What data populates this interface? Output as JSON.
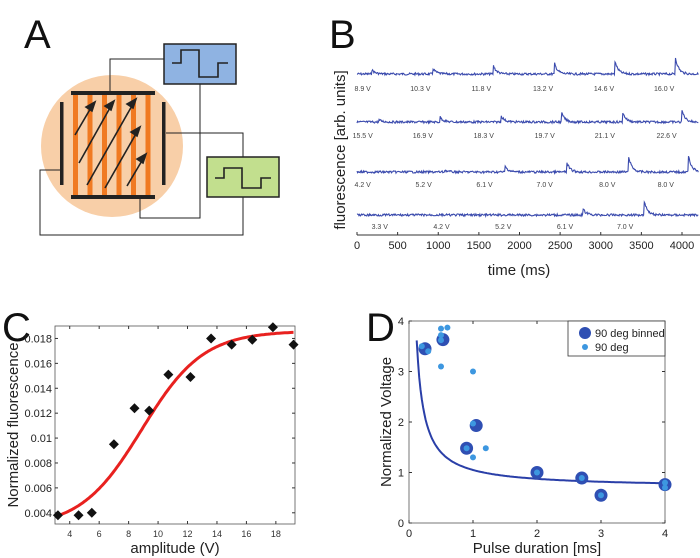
{
  "panels": {
    "A": {
      "letter": "A"
    },
    "B": {
      "letter": "B"
    },
    "C": {
      "letter": "C"
    },
    "D": {
      "letter": "D"
    }
  },
  "colors": {
    "trace": "#3a4aad",
    "fit_red": "#e8211f",
    "binned": "#2f4fb3",
    "raw": "#3d97e0",
    "fit_blue": "#2a3fa8",
    "circle_fill": "#f8cfa8",
    "stripe": "#f07a22",
    "blue_box": "#8fb3e2",
    "green_box": "#c2df8e"
  },
  "chart_data": [
    {
      "panel": "A",
      "type": "diagram",
      "description": "Electrode schematic with two square-wave pulse generators driving field across striped sample"
    },
    {
      "panel": "B",
      "type": "line",
      "title": "",
      "xlabel": "time (ms)",
      "ylabel": "fluorescence [arb. units]",
      "xlim": [
        0,
        4200
      ],
      "xticks": [
        0,
        500,
        1000,
        1500,
        2000,
        2500,
        3000,
        3500,
        4000
      ],
      "traces": [
        {
          "name": "trace-1",
          "labels": [
            "8.9 V",
            "10.3 V",
            "11.8 V",
            "13.2 V",
            "14.6 V",
            "16.0 V"
          ],
          "spike_times": [
            180,
            930,
            1680,
            2430,
            3170,
            3920
          ],
          "spike_heights": [
            0.25,
            0.35,
            0.45,
            0.6,
            0.8,
            0.9
          ]
        },
        {
          "name": "trace-2",
          "labels": [
            "15.5 V",
            "16.9 V",
            "18.3 V",
            "19.7 V",
            "21.1 V",
            "22.6 V"
          ],
          "spike_times": [
            270,
            1020,
            1770,
            2520,
            3270,
            4000
          ],
          "spike_heights": [
            0.12,
            0.3,
            0.4,
            0.5,
            0.55,
            0.65
          ]
        },
        {
          "name": "trace-3",
          "labels": [
            "4.2 V",
            "5.2 V",
            "6.1 V",
            "7.0 V",
            "8.0 V",
            "8.0 V"
          ],
          "spike_times": [
            330,
            1080,
            1820,
            2580,
            3340,
            4080
          ],
          "spike_heights": [
            0.0,
            0.1,
            0.35,
            0.55,
            0.95,
            0.9
          ]
        },
        {
          "name": "trace-4",
          "labels": [
            "3.3 V",
            "4.2 V",
            "5.2 V",
            "6.1 V",
            "7.0 V"
          ],
          "spike_times": [
            300,
            1050,
            1800,
            2780,
            3530
          ],
          "spike_heights": [
            0.0,
            0.0,
            0.0,
            0.35,
            0.9
          ]
        }
      ],
      "label_times": [
        [
          70,
          780,
          1530,
          2290,
          3040,
          3780
        ],
        [
          70,
          810,
          1560,
          2310,
          3050,
          3810
        ],
        [
          70,
          820,
          1570,
          2310,
          3080,
          3800
        ],
        [
          280,
          1040,
          1800,
          2560,
          3300
        ]
      ]
    },
    {
      "panel": "C",
      "type": "scatter",
      "title": "",
      "xlabel": "amplitude (V)",
      "ylabel": "Normalized fluorescence",
      "xlim": [
        3,
        19.3
      ],
      "ylim": [
        0.0031,
        0.019
      ],
      "xticks": [
        4,
        6,
        8,
        10,
        12,
        14,
        16,
        18
      ],
      "yticks": [
        0.004,
        0.006,
        0.008,
        0.01,
        0.012,
        0.014,
        0.016,
        0.018
      ],
      "ytick_labels": [
        "0.004",
        "0.006",
        "0.008",
        "0.01",
        "0.012",
        "0.014",
        "0.016",
        "0.018"
      ],
      "points": {
        "x": [
          3.2,
          4.6,
          5.5,
          7.0,
          8.4,
          9.4,
          10.7,
          12.2,
          13.6,
          15.0,
          16.4,
          17.8,
          19.2
        ],
        "y": [
          0.0038,
          0.0038,
          0.004,
          0.0095,
          0.0124,
          0.0122,
          0.0151,
          0.0149,
          0.018,
          0.0175,
          0.0179,
          0.0189,
          0.0175
        ]
      },
      "fit": {
        "type": "sigmoid",
        "min": 0.0028,
        "max": 0.0186,
        "x0": 8.9,
        "k": 0.48,
        "color": "red"
      }
    },
    {
      "panel": "D",
      "type": "scatter",
      "title": "",
      "xlabel": "Pulse duration [ms]",
      "ylabel": "Normalized Voltage",
      "xlim": [
        0,
        4
      ],
      "ylim": [
        0,
        4
      ],
      "xticks": [
        0,
        1,
        2,
        3,
        4
      ],
      "yticks": [
        0,
        1,
        2,
        3,
        4
      ],
      "legend": {
        "position": "top-right",
        "entries": [
          "90 deg binned",
          "90 deg"
        ]
      },
      "series": [
        {
          "name": "90 deg binned",
          "x": [
            0.25,
            0.53,
            0.9,
            1.05,
            2.0,
            2.7,
            3.0,
            4.0
          ],
          "y": [
            3.45,
            3.63,
            1.48,
            1.93,
            1.0,
            0.89,
            0.55,
            0.76
          ]
        },
        {
          "name": "90 deg",
          "x": [
            0.2,
            0.3,
            0.5,
            0.6,
            0.5,
            0.5,
            0.5,
            1.0,
            1.0,
            1.0,
            0.9,
            1.2,
            2.0,
            2.7,
            3.0,
            4.0,
            4.0
          ],
          "y": [
            3.5,
            3.4,
            3.85,
            3.87,
            3.72,
            3.62,
            3.1,
            3.0,
            1.97,
            1.3,
            1.48,
            1.48,
            1.0,
            0.89,
            0.55,
            0.8,
            0.7
          ]
        }
      ],
      "fit": {
        "type": "hyperbolic",
        "a": 0.35,
        "b": 0.7,
        "color": "blue"
      }
    }
  ]
}
